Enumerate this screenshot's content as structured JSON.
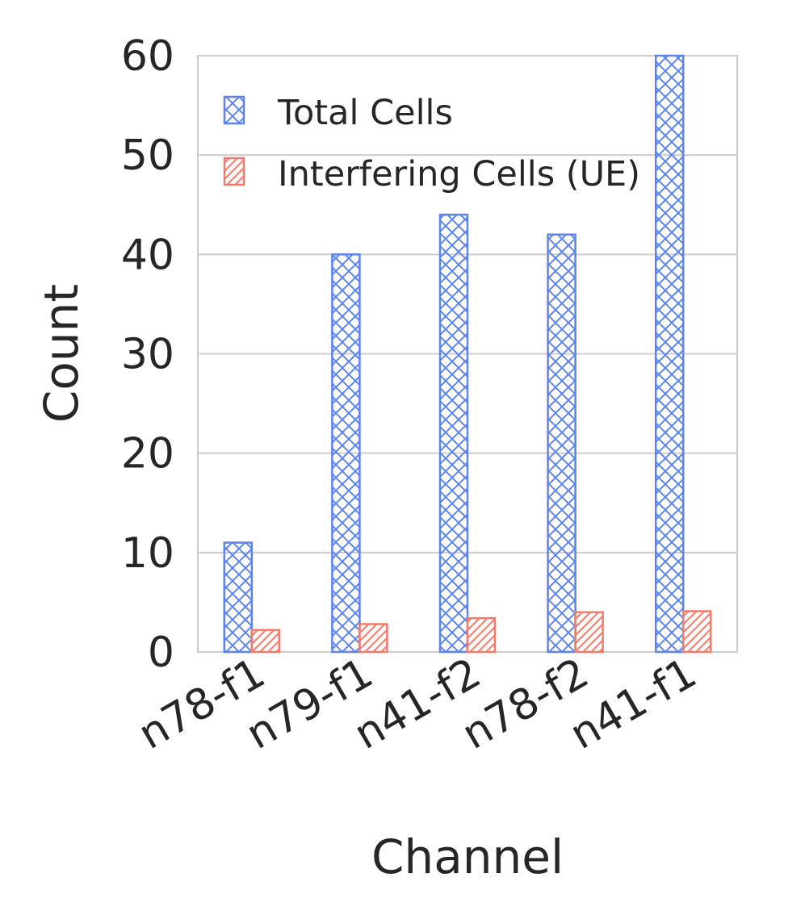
{
  "chart_data": {
    "type": "bar",
    "xlabel": "Channel",
    "ylabel": "Count",
    "categories": [
      "n78-f1",
      "n79-f1",
      "n41-f2",
      "n78-f2",
      "n41-f1"
    ],
    "series": [
      {
        "name": "Total Cells",
        "values": [
          11,
          40,
          44,
          42,
          60
        ],
        "color": "#5b84f0",
        "hatch": "cross"
      },
      {
        "name": "Interfering Cells (UE)",
        "values": [
          2.2,
          2.8,
          3.4,
          4.0,
          4.1
        ],
        "color": "#f47a6c",
        "hatch": "diagonal"
      }
    ],
    "ylim": [
      0,
      60
    ],
    "yticks": [
      0,
      10,
      20,
      30,
      40,
      50,
      60
    ],
    "grid": "horizontal",
    "legend_position": "top-left"
  }
}
